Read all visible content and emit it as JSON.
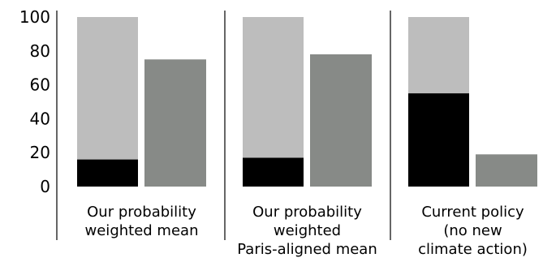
{
  "colors": {
    "stacked_top": "#bdbdbd",
    "stacked_bottom": "#000000",
    "single": "#878a87",
    "divider": "#000000"
  },
  "chart_data": {
    "type": "bar",
    "title": "",
    "xlabel": "",
    "ylabel": "",
    "ylim": [
      0,
      100
    ],
    "y_ticks": [
      "0",
      "20",
      "40",
      "60",
      "80",
      "100"
    ],
    "grid": false,
    "groups": [
      {
        "label_lines": [
          "Our probability",
          "weighted mean"
        ],
        "stacked_bar": {
          "bottom": 16,
          "top": 84
        },
        "single_bar": 75
      },
      {
        "label_lines": [
          "Our probability",
          "weighted",
          "Paris-aligned mean"
        ],
        "stacked_bar": {
          "bottom": 17,
          "top": 83
        },
        "single_bar": 78
      },
      {
        "label_lines": [
          "Current policy",
          "(no new",
          "climate action)"
        ],
        "stacked_bar": {
          "bottom": 55,
          "top": 45
        },
        "single_bar": 19
      }
    ]
  }
}
